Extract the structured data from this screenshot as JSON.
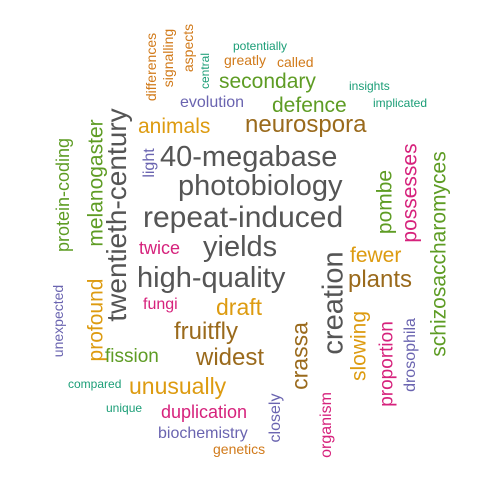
{
  "colors": {
    "gray": "#555555",
    "brown": "#9a6a1c",
    "orange": "#d17a1a",
    "amber": "#dd9b10",
    "green": "#5e9c24",
    "teal": "#1b9e77",
    "purple": "#6a64b0",
    "pink": "#d6227c"
  },
  "words": [
    {
      "id": "40-megabase",
      "text": "40-megabase",
      "color": "gray"
    },
    {
      "id": "photobiology",
      "text": "photobiology",
      "color": "gray"
    },
    {
      "id": "repeat-induced",
      "text": "repeat-induced",
      "color": "gray"
    },
    {
      "id": "yields",
      "text": "yields",
      "color": "gray"
    },
    {
      "id": "high-quality",
      "text": "high-quality",
      "color": "gray"
    },
    {
      "id": "twentieth-century",
      "text": "twentieth-century",
      "color": "gray"
    },
    {
      "id": "creation",
      "text": "creation",
      "color": "gray"
    },
    {
      "id": "neurospora",
      "text": "neurospora",
      "color": "brown"
    },
    {
      "id": "draft",
      "text": "draft",
      "color": "amber"
    },
    {
      "id": "fruitfly",
      "text": "fruitfly",
      "color": "brown"
    },
    {
      "id": "widest",
      "text": "widest",
      "color": "brown"
    },
    {
      "id": "crassa",
      "text": "crassa",
      "color": "brown"
    },
    {
      "id": "unusually",
      "text": "unusually",
      "color": "amber"
    },
    {
      "id": "animals",
      "text": "animals",
      "color": "amber"
    },
    {
      "id": "defence",
      "text": "defence",
      "color": "green"
    },
    {
      "id": "secondary",
      "text": "secondary",
      "color": "green"
    },
    {
      "id": "plants",
      "text": "plants",
      "color": "brown"
    },
    {
      "id": "fewer",
      "text": "fewer",
      "color": "amber"
    },
    {
      "id": "slowing",
      "text": "slowing",
      "color": "amber"
    },
    {
      "id": "melanogaster",
      "text": "melanogaster",
      "color": "green"
    },
    {
      "id": "profound",
      "text": "profound",
      "color": "amber"
    },
    {
      "id": "protein-coding",
      "text": "protein-coding",
      "color": "green"
    },
    {
      "id": "schizosaccharomyces",
      "text": "schizosaccharomyces",
      "color": "green"
    },
    {
      "id": "pombe",
      "text": "pombe",
      "color": "green"
    },
    {
      "id": "possesses",
      "text": "possesses",
      "color": "pink"
    },
    {
      "id": "proportion",
      "text": "proportion",
      "color": "pink"
    },
    {
      "id": "drosophila",
      "text": "drosophila",
      "color": "purple"
    },
    {
      "id": "organism",
      "text": "organism",
      "color": "pink"
    },
    {
      "id": "duplication",
      "text": "duplication",
      "color": "pink"
    },
    {
      "id": "biochemistry",
      "text": "biochemistry",
      "color": "purple"
    },
    {
      "id": "closely",
      "text": "closely",
      "color": "purple"
    },
    {
      "id": "genetics",
      "text": "genetics",
      "color": "orange"
    },
    {
      "id": "fission",
      "text": "fission",
      "color": "green"
    },
    {
      "id": "fungi",
      "text": "fungi",
      "color": "pink"
    },
    {
      "id": "twice",
      "text": "twice",
      "color": "pink"
    },
    {
      "id": "light",
      "text": "light",
      "color": "purple"
    },
    {
      "id": "evolution",
      "text": "evolution",
      "color": "purple"
    },
    {
      "id": "unexpected",
      "text": "unexpected",
      "color": "purple"
    },
    {
      "id": "compared",
      "text": "compared",
      "color": "teal"
    },
    {
      "id": "unique",
      "text": "unique",
      "color": "teal"
    },
    {
      "id": "potentially",
      "text": "potentially",
      "color": "teal"
    },
    {
      "id": "greatly",
      "text": "greatly",
      "color": "orange"
    },
    {
      "id": "called",
      "text": "called",
      "color": "orange"
    },
    {
      "id": "insights",
      "text": "insights",
      "color": "teal"
    },
    {
      "id": "implicated",
      "text": "implicated",
      "color": "teal"
    },
    {
      "id": "central",
      "text": "central",
      "color": "teal"
    },
    {
      "id": "aspects",
      "text": "aspects",
      "color": "orange"
    },
    {
      "id": "signalling",
      "text": "signalling",
      "color": "orange"
    },
    {
      "id": "differences",
      "text": "differences",
      "color": "orange"
    }
  ]
}
